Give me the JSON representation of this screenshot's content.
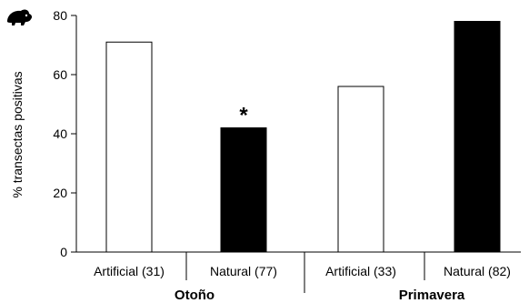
{
  "chart_data": {
    "type": "bar",
    "ylabel": "% transectas positivas",
    "ylim": [
      0,
      80
    ],
    "yticks": [
      0,
      20,
      40,
      60,
      80
    ],
    "categories": [
      "Artificial (31)",
      "Natural (77)",
      "Artificial (33)",
      "Natural (82)"
    ],
    "groups": [
      "Otoño",
      "Primavera"
    ],
    "values": [
      71,
      42,
      56,
      78
    ],
    "fills": [
      "#ffffff",
      "#000000",
      "#ffffff",
      "#000000"
    ],
    "annotations": [
      {
        "category": "Natural (77)",
        "text": "*"
      }
    ],
    "icon": "rodent-icon"
  }
}
